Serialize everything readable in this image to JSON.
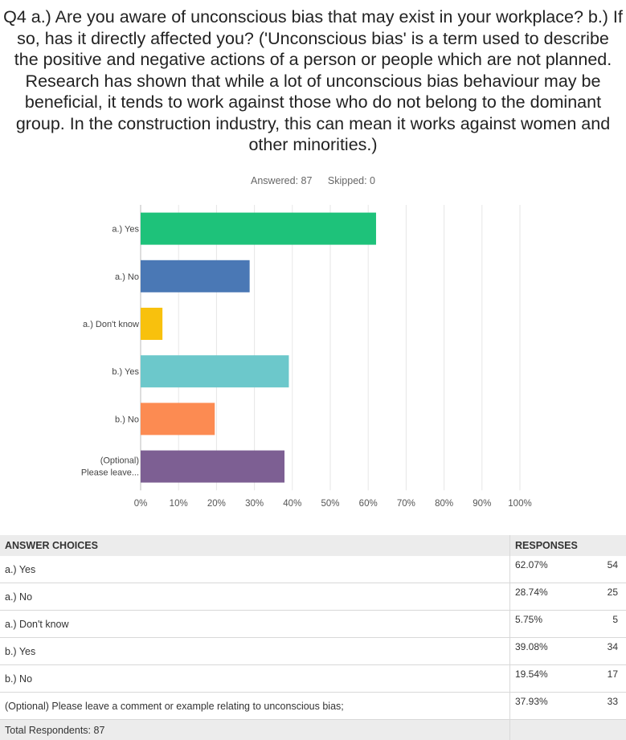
{
  "question": "Q4 a.) Are you aware of unconscious bias that may exist in your workplace? b.) If so, has it directly affected you? ('Unconscious bias' is a term used to describe the positive and negative actions of a person or people which are not planned. Research has shown that while a lot of unconscious bias behaviour may be beneficial, it tends to work against those who do not belong to the dominant group. In the construction industry, this can mean it works against women and other minorities.)",
  "answered": "Answered: 87",
  "skipped": "Skipped: 0",
  "chart_data": {
    "type": "bar",
    "orientation": "horizontal",
    "categories": [
      "a.) Yes",
      "a.) No",
      "a.) Don't know",
      "b.) Yes",
      "b.) No",
      "(Optional) Please leave..."
    ],
    "values": [
      62.07,
      28.74,
      5.75,
      39.08,
      19.54,
      37.93
    ],
    "colors": [
      "#1ec27a",
      "#4a78b5",
      "#f8c10d",
      "#6cc8cb",
      "#fc8b52",
      "#7d5f93"
    ],
    "xlim": [
      0,
      100
    ],
    "xticks": [
      "0%",
      "10%",
      "20%",
      "30%",
      "40%",
      "50%",
      "60%",
      "70%",
      "80%",
      "90%",
      "100%"
    ],
    "grid": true
  },
  "table": {
    "header_choice": "ANSWER CHOICES",
    "header_responses": "RESPONSES",
    "rows": [
      {
        "choice": "a.) Yes",
        "percent": "62.07%",
        "count": "54"
      },
      {
        "choice": "a.) No",
        "percent": "28.74%",
        "count": "25"
      },
      {
        "choice": "a.) Don't know",
        "percent": "5.75%",
        "count": "5"
      },
      {
        "choice": "b.) Yes",
        "percent": "39.08%",
        "count": "34"
      },
      {
        "choice": "b.) No",
        "percent": "19.54%",
        "count": "17"
      },
      {
        "choice": "(Optional) Please leave a comment or example relating to unconscious bias;",
        "percent": "37.93%",
        "count": "33"
      }
    ],
    "total": "Total Respondents: 87"
  }
}
